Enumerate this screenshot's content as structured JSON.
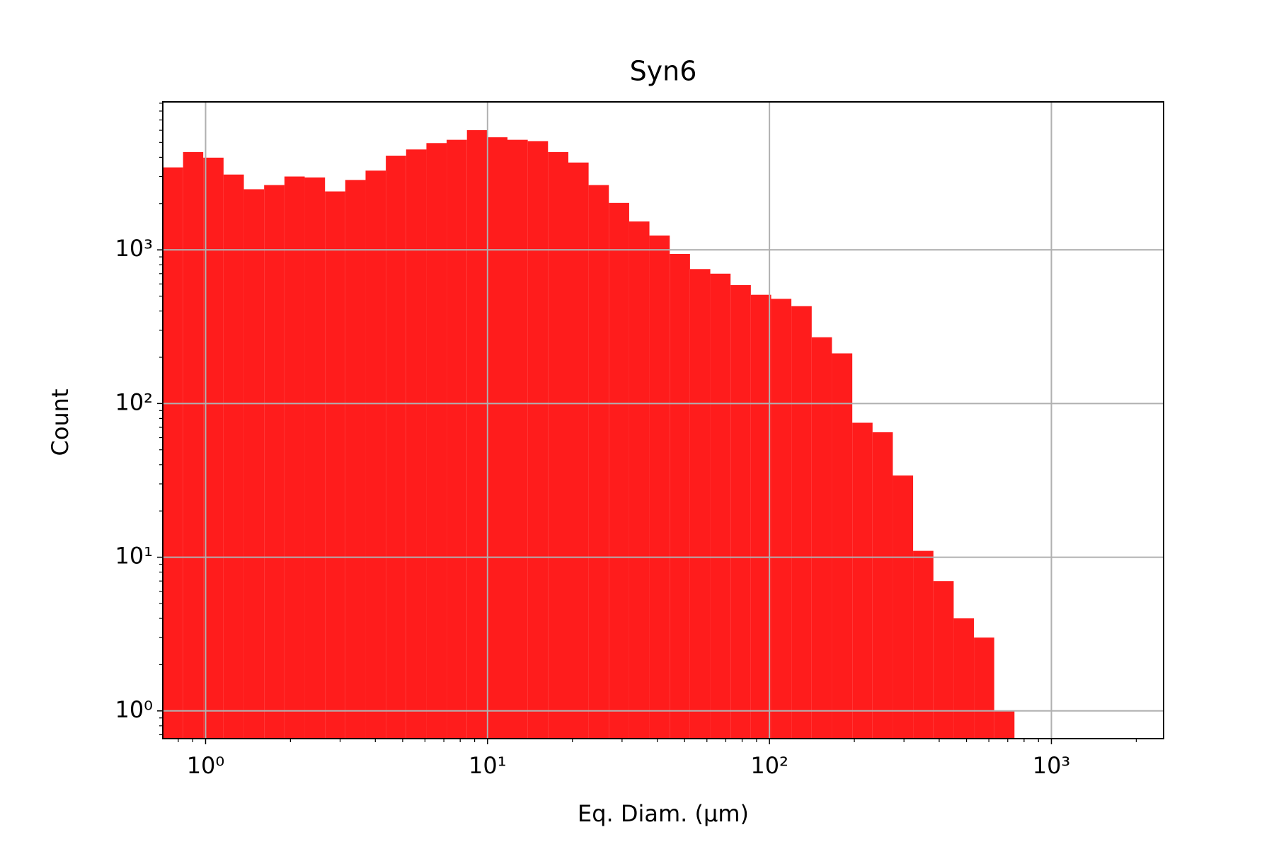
{
  "chart_data": {
    "type": "histogram",
    "title": "Syn6",
    "x_label": "Eq. Diam. (µm)",
    "y_label": "Count",
    "color": "#ff1c1c",
    "x_log": true,
    "y_log": true,
    "grid": true,
    "bins": [
      0.705,
      0.832,
      0.981,
      1.158,
      1.367,
      1.613,
      1.904,
      2.247,
      2.652,
      3.129,
      3.693,
      4.358,
      5.143,
      6.07,
      7.161,
      8.452,
      9.975,
      11.77,
      13.89,
      16.39,
      19.35,
      22.83,
      26.94,
      31.8,
      37.52,
      44.29,
      52.26,
      61.68,
      72.79,
      85.9,
      101.4,
      119.6,
      141.2,
      166.6,
      196.7,
      232.1,
      273.9,
      323.2,
      381.5,
      450.2,
      531.3,
      627.0,
      739.6
    ],
    "values": [
      3440,
      4330,
      3980,
      3090,
      2480,
      2640,
      3000,
      2960,
      2400,
      2850,
      3280,
      4100,
      4500,
      4950,
      5200,
      6010,
      5400,
      5200,
      5100,
      4330,
      3700,
      2640,
      2020,
      1530,
      1240,
      940,
      750,
      700,
      590,
      510,
      480,
      430,
      270,
      212,
      75,
      65,
      34,
      11,
      7,
      4,
      3,
      1
    ],
    "xlim": [
      0.705,
      2500
    ],
    "ylim": [
      0.66,
      9180
    ],
    "xticks": [
      {
        "value": 1,
        "label": "10⁰"
      },
      {
        "value": 10,
        "label": "10¹"
      },
      {
        "value": 100,
        "label": "10²"
      },
      {
        "value": 1000,
        "label": "10³"
      }
    ],
    "yticks": [
      {
        "value": 1,
        "label": "10⁰"
      },
      {
        "value": 10,
        "label": "10¹"
      },
      {
        "value": 100,
        "label": "10²"
      },
      {
        "value": 1000,
        "label": "10³"
      }
    ]
  }
}
